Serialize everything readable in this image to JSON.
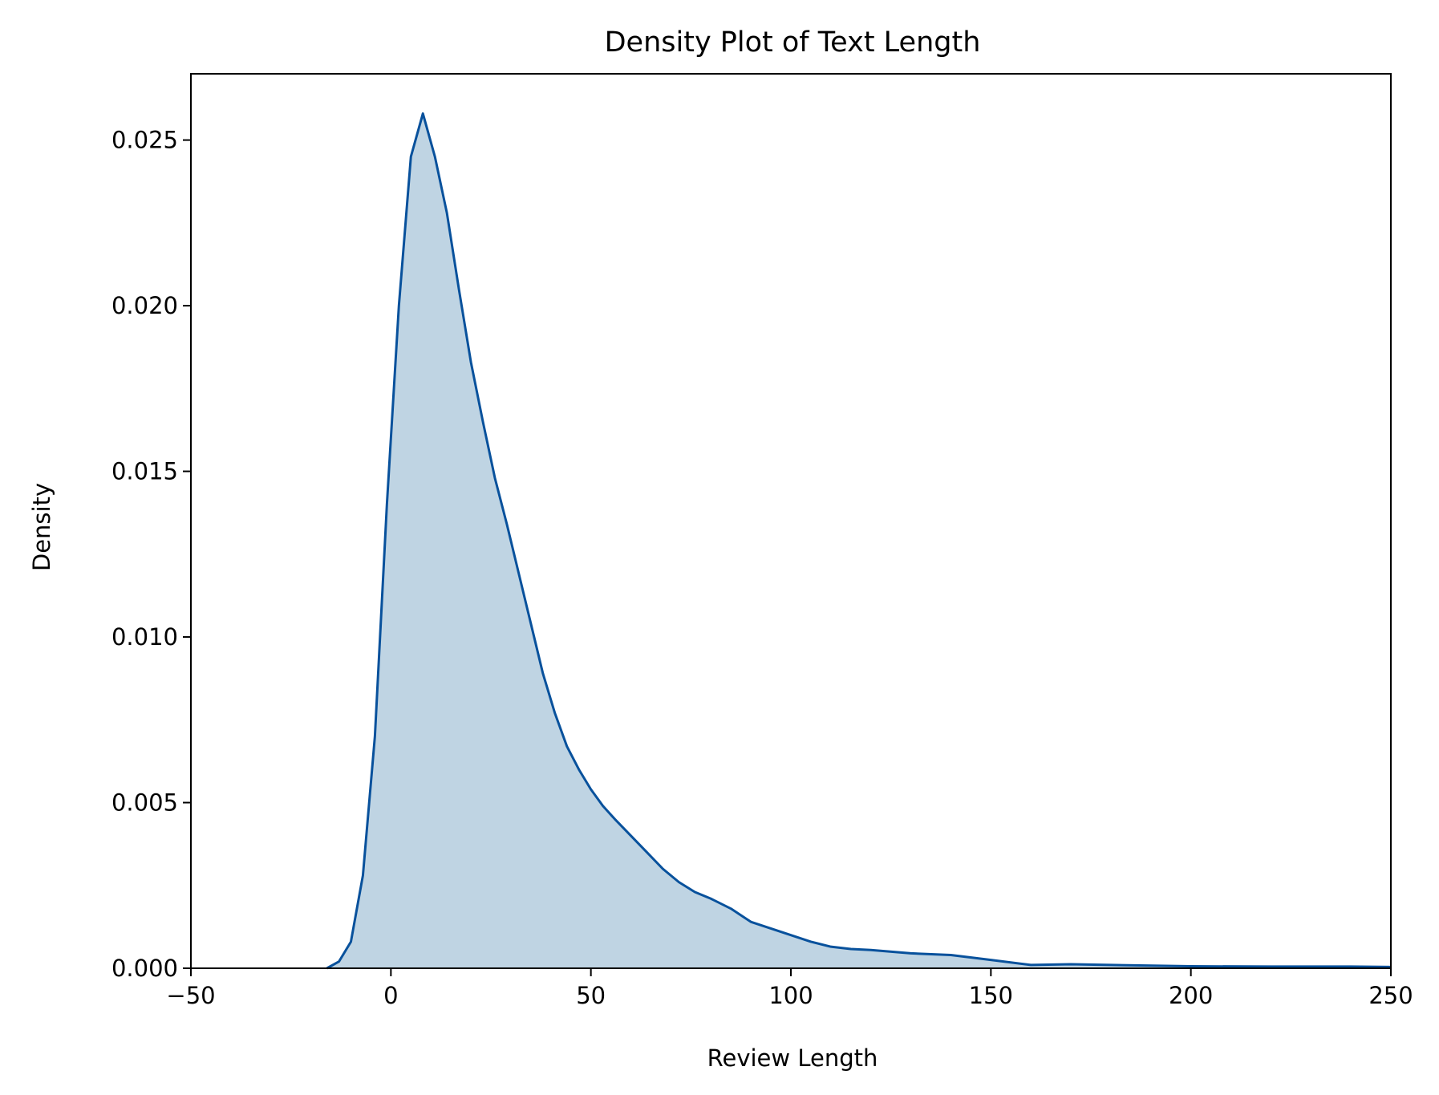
{
  "chart_data": {
    "type": "area",
    "title": "Density Plot of Text Length",
    "xlabel": "Review Length",
    "ylabel": "Density",
    "xlim": [
      -50,
      250
    ],
    "ylim": [
      0,
      0.027
    ],
    "x_ticks": [
      -50,
      0,
      50,
      100,
      150,
      200,
      250
    ],
    "x_tick_labels": [
      "−50",
      "0",
      "50",
      "100",
      "150",
      "200",
      "250"
    ],
    "y_ticks": [
      0,
      0.005,
      0.01,
      0.015,
      0.02,
      0.025
    ],
    "y_tick_labels": [
      "0.000",
      "0.005",
      "0.010",
      "0.015",
      "0.020",
      "0.025"
    ],
    "grid": false,
    "legend": "none",
    "line_color": "#08519c",
    "fill_color": "#bfd4e3",
    "series": [
      {
        "x": [
          -16,
          -13,
          -10,
          -7,
          -4,
          -1,
          2,
          5,
          8,
          11,
          14,
          17,
          20,
          23,
          26,
          29,
          32,
          35,
          38,
          41,
          44,
          47,
          50,
          53,
          56,
          60,
          64,
          68,
          72,
          76,
          80,
          85,
          90,
          95,
          100,
          105,
          110,
          115,
          120,
          130,
          140,
          150,
          160,
          170,
          180,
          200,
          220,
          240,
          250
        ],
        "y": [
          0,
          0.0002,
          0.0008,
          0.0028,
          0.007,
          0.014,
          0.02,
          0.0245,
          0.0258,
          0.0245,
          0.0228,
          0.0205,
          0.0183,
          0.0165,
          0.0148,
          0.0134,
          0.0119,
          0.0104,
          0.0089,
          0.0077,
          0.0067,
          0.006,
          0.0054,
          0.0049,
          0.0045,
          0.004,
          0.0035,
          0.003,
          0.0026,
          0.0023,
          0.0021,
          0.0018,
          0.0014,
          0.0012,
          0.001,
          0.0008,
          0.00065,
          0.00058,
          0.00055,
          0.00045,
          0.0004,
          0.00025,
          0.0001,
          0.00012,
          0.0001,
          6e-05,
          5e-05,
          5e-05,
          4e-05
        ]
      }
    ]
  }
}
